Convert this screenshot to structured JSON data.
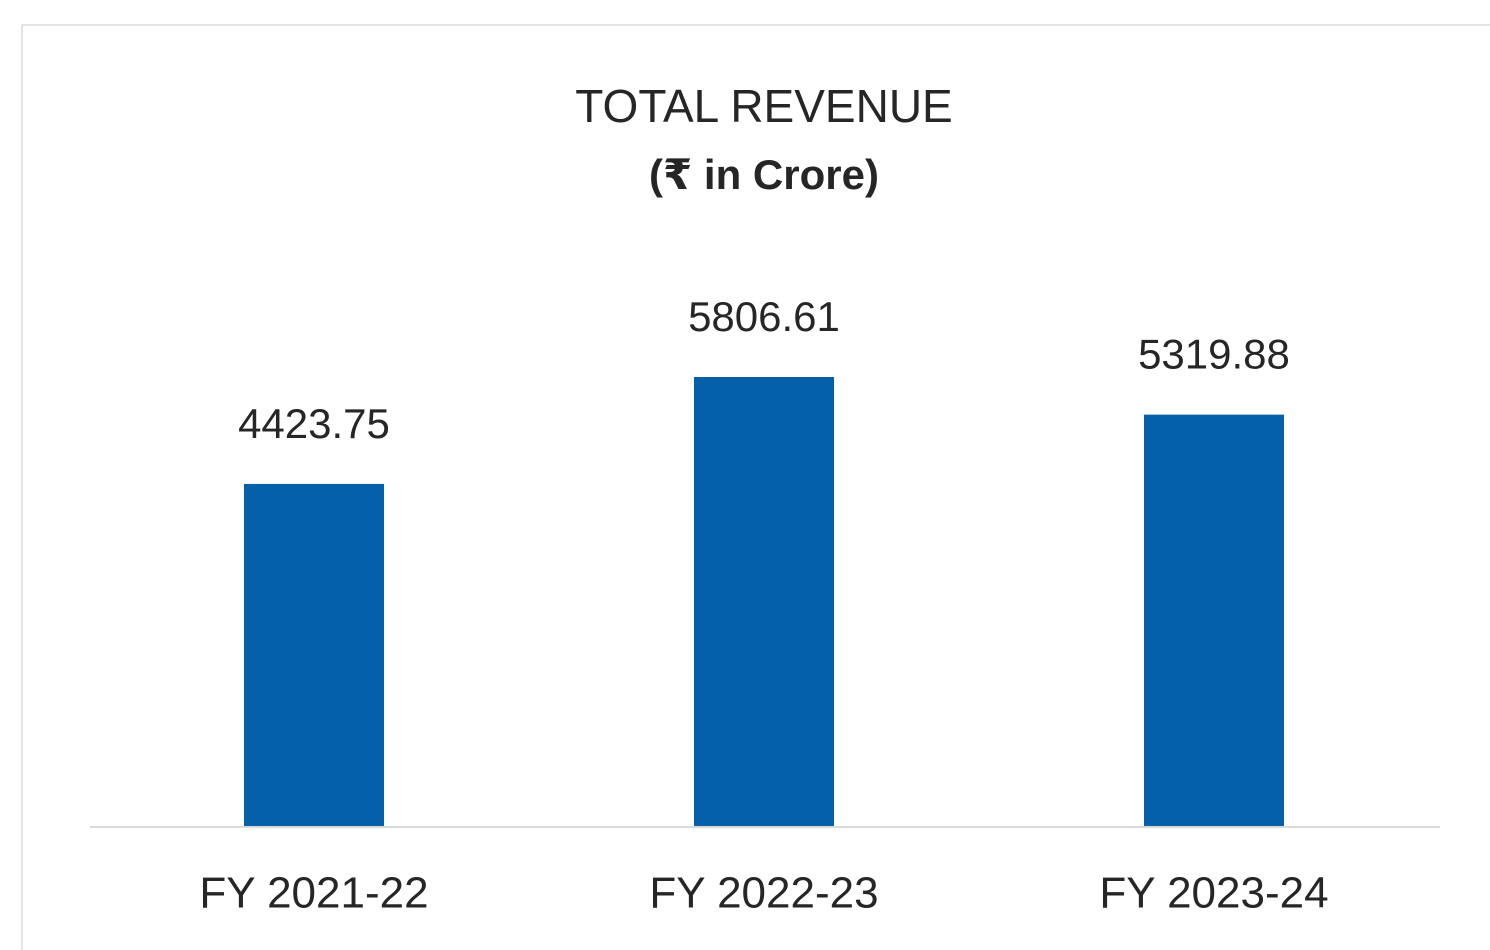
{
  "chart_data": {
    "type": "bar",
    "title": "TOTAL REVENUE",
    "subtitle": "(₹ in Crore)",
    "categories": [
      "FY 2021-22",
      "FY 2022-23",
      "FY 2023-24"
    ],
    "values": [
      4423.75,
      5806.61,
      5319.88
    ],
    "color": "#0461a9"
  }
}
